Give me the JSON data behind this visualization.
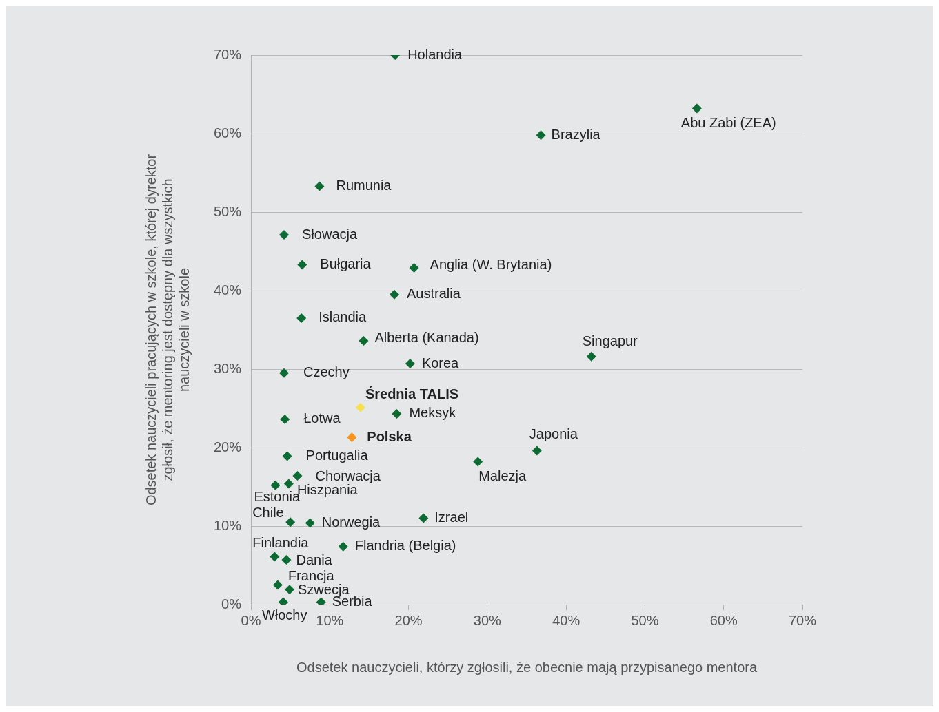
{
  "chart_data": {
    "type": "scatter",
    "xlabel": "Odsetek nauczycieli, którzy zgłosili, że obecnie mają przypisanego mentora",
    "ylabel": "Odsetek nauczycieli pracujących w szkole, której dyrektor zgłosił, że mentoring jest dostępny dla wszystkich nauczycieli w szkole",
    "xlim": [
      0,
      70
    ],
    "ylim": [
      0,
      70
    ],
    "xticks": [
      {
        "value": 0,
        "label": "0%"
      },
      {
        "value": 10,
        "label": "10%"
      },
      {
        "value": 20,
        "label": "20%"
      },
      {
        "value": 30,
        "label": "30%"
      },
      {
        "value": 40,
        "label": "40%"
      },
      {
        "value": 50,
        "label": "50%"
      },
      {
        "value": 60,
        "label": "60%"
      },
      {
        "value": 70,
        "label": "70%"
      }
    ],
    "yticks": [
      {
        "value": 0,
        "label": "0%"
      },
      {
        "value": 10,
        "label": "10%"
      },
      {
        "value": 20,
        "label": "20%"
      },
      {
        "value": 30,
        "label": "30%"
      },
      {
        "value": 40,
        "label": "40%"
      },
      {
        "value": 50,
        "label": "50%"
      },
      {
        "value": 60,
        "label": "60%"
      },
      {
        "value": 70,
        "label": "70%"
      }
    ],
    "grid": "y",
    "legend": false,
    "marker": "diamond",
    "series": [
      {
        "name": "Holandia",
        "color": "#0b6b32",
        "x": [
          18.3
        ],
        "values": [
          70
        ]
      },
      {
        "name": "Abu Zabi (ZEA)",
        "color": "#0b6b32",
        "x": [
          56.6
        ],
        "values": [
          63.2
        ]
      },
      {
        "name": "Brazylia",
        "color": "#0b6b32",
        "x": [
          36.8
        ],
        "values": [
          59.8
        ]
      },
      {
        "name": "Rumunia",
        "color": "#0b6b32",
        "x": [
          8.7
        ],
        "values": [
          53.3
        ]
      },
      {
        "name": "Słowacja",
        "color": "#0b6b32",
        "x": [
          4.2
        ],
        "values": [
          47.1
        ]
      },
      {
        "name": "Bułgaria",
        "color": "#0b6b32",
        "x": [
          6.5
        ],
        "values": [
          43.3
        ]
      },
      {
        "name": "Anglia (W. Brytania)",
        "color": "#0b6b32",
        "x": [
          20.7
        ],
        "values": [
          42.9
        ]
      },
      {
        "name": "Australia",
        "color": "#0b6b32",
        "x": [
          18.2
        ],
        "values": [
          39.5
        ]
      },
      {
        "name": "Islandia",
        "color": "#0b6b32",
        "x": [
          6.4
        ],
        "values": [
          36.5
        ]
      },
      {
        "name": "Alberta (Kanada)",
        "color": "#0b6b32",
        "x": [
          14.3
        ],
        "values": [
          33.6
        ]
      },
      {
        "name": "Singapur",
        "color": "#0b6b32",
        "x": [
          43.2
        ],
        "values": [
          31.6
        ]
      },
      {
        "name": "Korea",
        "color": "#0b6b32",
        "x": [
          20.2
        ],
        "values": [
          30.7
        ]
      },
      {
        "name": "Czechy",
        "color": "#0b6b32",
        "x": [
          4.2
        ],
        "values": [
          29.5
        ]
      },
      {
        "name": "Średnia TALIS",
        "color": "#f7e04b",
        "x": [
          13.9
        ],
        "values": [
          25.1
        ]
      },
      {
        "name": "Meksyk",
        "color": "#0b6b32",
        "x": [
          18.5
        ],
        "values": [
          24.3
        ]
      },
      {
        "name": "Łotwa",
        "color": "#0b6b32",
        "x": [
          4.3
        ],
        "values": [
          23.6
        ]
      },
      {
        "name": "Polska",
        "color": "#f7941d",
        "x": [
          12.8
        ],
        "values": [
          21.3
        ]
      },
      {
        "name": "Japonia",
        "color": "#0b6b32",
        "x": [
          36.3
        ],
        "values": [
          19.6
        ]
      },
      {
        "name": "Portugalia",
        "color": "#0b6b32",
        "x": [
          4.6
        ],
        "values": [
          18.9
        ]
      },
      {
        "name": "Malezja",
        "color": "#0b6b32",
        "x": [
          28.8
        ],
        "values": [
          18.2
        ]
      },
      {
        "name": "Chorwacja",
        "color": "#0b6b32",
        "x": [
          5.9
        ],
        "values": [
          16.4
        ]
      },
      {
        "name": "Hiszpania",
        "color": "#0b6b32",
        "x": [
          4.8
        ],
        "values": [
          15.4
        ]
      },
      {
        "name": "Estonia",
        "color": "#0b6b32",
        "x": [
          3.1
        ],
        "values": [
          15.2
        ]
      },
      {
        "name": "Chile",
        "color": "#0b6b32",
        "x": [
          5.0
        ],
        "values": [
          10.5
        ]
      },
      {
        "name": "Norwegia",
        "color": "#0b6b32",
        "x": [
          7.5
        ],
        "values": [
          10.4
        ]
      },
      {
        "name": "Izrael",
        "color": "#0b6b32",
        "x": [
          21.9
        ],
        "values": [
          11.0
        ]
      },
      {
        "name": "Flandria (Belgia)",
        "color": "#0b6b32",
        "x": [
          11.7
        ],
        "values": [
          7.4
        ]
      },
      {
        "name": "Finlandia",
        "color": "#0b6b32",
        "x": [
          3.0
        ],
        "values": [
          6.1
        ]
      },
      {
        "name": "Dania",
        "color": "#0b6b32",
        "x": [
          4.5
        ],
        "values": [
          5.7
        ]
      },
      {
        "name": "Francja",
        "color": "#0b6b32",
        "x": [
          3.4
        ],
        "values": [
          2.5
        ]
      },
      {
        "name": "Szwecja",
        "color": "#0b6b32",
        "x": [
          4.9
        ],
        "values": [
          1.9
        ]
      },
      {
        "name": "Serbia",
        "color": "#0b6b32",
        "x": [
          8.9
        ],
        "values": [
          0.3
        ]
      },
      {
        "name": "Włochy",
        "color": "#0b6b32",
        "x": [
          4.1
        ],
        "values": [
          0.3
        ]
      }
    ]
  }
}
